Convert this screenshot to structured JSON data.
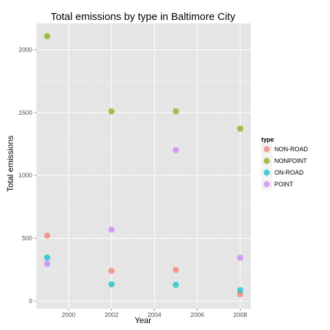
{
  "chart_data": {
    "type": "scatter",
    "title": "Total emissions by type in Baltimore City",
    "xlabel": "Year",
    "ylabel": "Total emissions",
    "xlim": [
      1998.5,
      2008.5
    ],
    "ylim": [
      -60,
      2210
    ],
    "x_ticks": [
      2000,
      2002,
      2004,
      2006,
      2008
    ],
    "y_ticks": [
      0,
      500,
      1000,
      1500,
      2000
    ],
    "x_tick_labels": [
      "2000",
      "2002",
      "2004",
      "2006",
      "2008"
    ],
    "y_tick_labels": [
      "0",
      "500",
      "1000",
      "1500",
      "2000"
    ],
    "grid": true,
    "legend": {
      "title": "type",
      "position": "right"
    },
    "series": [
      {
        "name": "NON-ROAD",
        "color": "#F8766D",
        "x": [
          1999,
          2002,
          2005,
          2008
        ],
        "y": [
          522,
          241,
          249,
          55
        ]
      },
      {
        "name": "NONPOINT",
        "color": "#7CAE00",
        "x": [
          1999,
          2002,
          2005,
          2008
        ],
        "y": [
          2108,
          1510,
          1510,
          1373
        ]
      },
      {
        "name": "ON-ROAD",
        "color": "#00BFC4",
        "x": [
          1999,
          2002,
          2005,
          2008
        ],
        "y": [
          347,
          134,
          130,
          88
        ]
      },
      {
        "name": "POINT",
        "color": "#C77CFF",
        "x": [
          1999,
          2002,
          2005,
          2008
        ],
        "y": [
          297,
          569,
          1202,
          345
        ]
      }
    ]
  }
}
